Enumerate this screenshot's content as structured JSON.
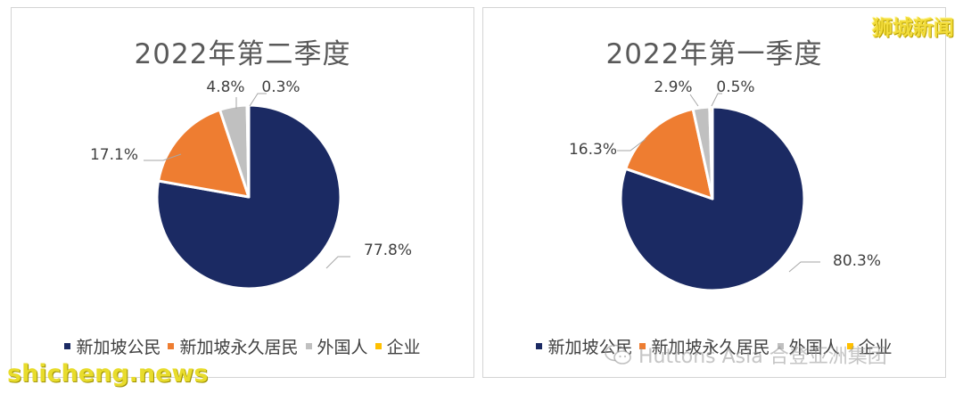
{
  "watermarks": {
    "top_right": "狮城新闻",
    "bottom_left": "shicheng.news",
    "wechat": "Huttons Asia 合登亚洲集团"
  },
  "colors": {
    "citizen": "#1b2a63",
    "pr": "#ee7d31",
    "foreigner": "#c0c0c0",
    "company": "#ffc000"
  },
  "chart_data": [
    {
      "type": "pie",
      "title": "2022年第二季度",
      "categories": [
        "新加坡公民",
        "新加坡永久居民",
        "外国人",
        "企业"
      ],
      "values": [
        77.8,
        17.1,
        4.8,
        0.3
      ],
      "labels": [
        "77.8%",
        "17.1%",
        "4.8%",
        "0.3%"
      ],
      "legend": "bottom"
    },
    {
      "type": "pie",
      "title": "2022年第一季度",
      "categories": [
        "新加坡公民",
        "新加坡永久居民",
        "外国人",
        "企业"
      ],
      "values": [
        80.3,
        16.3,
        2.9,
        0.5
      ],
      "labels": [
        "80.3%",
        "16.3%",
        "2.9%",
        "0.5%"
      ],
      "legend": "bottom"
    }
  ]
}
